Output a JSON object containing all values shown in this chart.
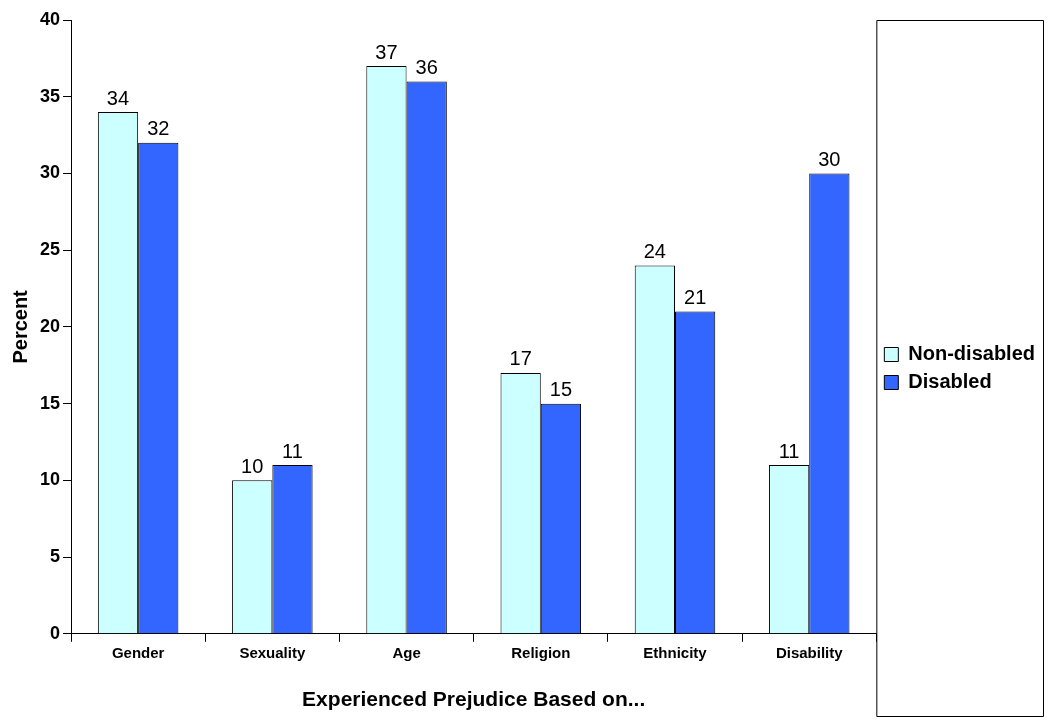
{
  "chart_data": {
    "type": "bar",
    "xlabel": "Experienced Prejudice Based on...",
    "ylabel": "Percent",
    "categories": [
      "Gender",
      "Sexuality",
      "Age",
      "Religion",
      "Ethnicity",
      "Disability"
    ],
    "series": [
      {
        "name": "Non-disabled",
        "color": "#ccffff",
        "values": [
          34,
          10,
          37,
          17,
          24,
          11
        ]
      },
      {
        "name": "Disabled",
        "color": "#3366ff",
        "values": [
          32,
          11,
          36,
          15,
          21,
          30
        ]
      }
    ],
    "ylim": [
      0,
      40
    ],
    "yticks": [
      0,
      5,
      10,
      15,
      20,
      25,
      30,
      35,
      40
    ],
    "grid": false,
    "legend": "right",
    "data_labels": true
  }
}
